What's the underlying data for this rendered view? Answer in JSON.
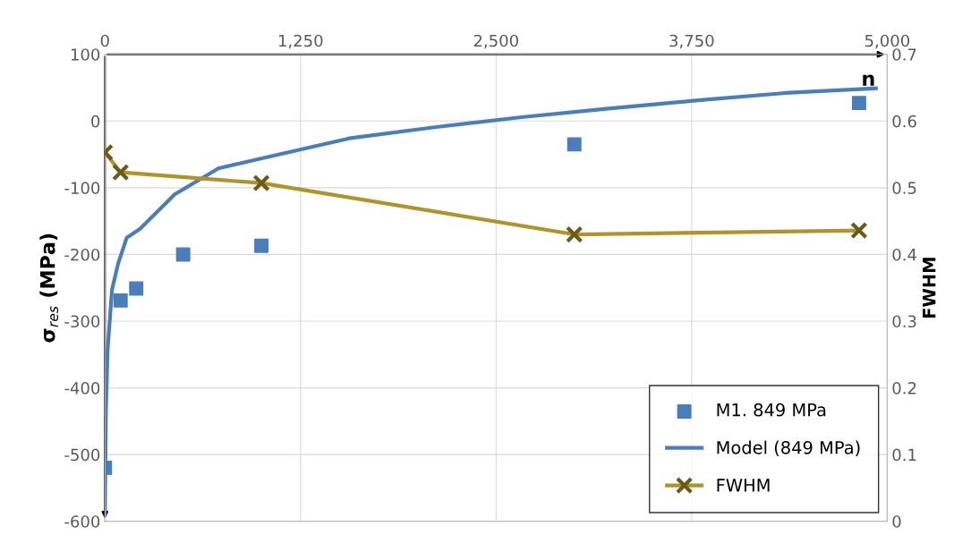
{
  "chart_data": {
    "type": "scatter",
    "xlabel": "n",
    "ylabel": "σ$_{res}$ (MPa)",
    "y2label": "FWHM",
    "xlim": [
      0,
      5000
    ],
    "xticks": [
      0,
      {
        "value": 1250,
        "label": "1,250"
      },
      {
        "value": 2500,
        "label": "2,500"
      },
      {
        "value": 3750,
        "label": "3,750"
      },
      {
        "value": 5000,
        "label": "5,000"
      }
    ],
    "ylim": [
      -600,
      100
    ],
    "yticks": [
      -600,
      -500,
      -400,
      -300,
      -200,
      -100,
      0,
      100
    ],
    "y2lim": [
      0,
      0.7
    ],
    "y2ticks": [
      0,
      0.1,
      0.2,
      0.3,
      0.4,
      0.5,
      0.6,
      0.7
    ],
    "grid": true,
    "legend": "bottom right",
    "series": [
      {
        "name": "M1. 849 MPa",
        "marker": "square",
        "color": "#4a7ebb",
        "x": [
          0,
          100,
          200,
          500,
          1000,
          3000,
          4820
        ],
        "values": [
          -520,
          -269,
          -251,
          -200,
          -187,
          -35,
          27
        ]
      },
      {
        "name": "Model (849 MPa)",
        "type": "line",
        "marker": "none",
        "color": "#4a7ebb",
        "x": [
          0,
          6,
          17,
          45,
          84,
          139,
          223,
          446,
          725,
          1003,
          1561,
          2118,
          2676,
          3233,
          3790,
          4348,
          4928
        ],
        "values": [
          -591,
          -435,
          -344,
          -253,
          -214,
          -175,
          -162,
          -110,
          -71,
          -56,
          -26,
          -9,
          6,
          19,
          31,
          42,
          49
        ]
      },
      {
        "name": "FWHM",
        "type": "line",
        "marker": "cross",
        "color": "#b0942a",
        "axis": "y2",
        "x": [
          0,
          100,
          1000,
          3000,
          4820
        ],
        "values": [
          0.553,
          0.523,
          0.507,
          0.43,
          0.436
        ]
      }
    ]
  }
}
